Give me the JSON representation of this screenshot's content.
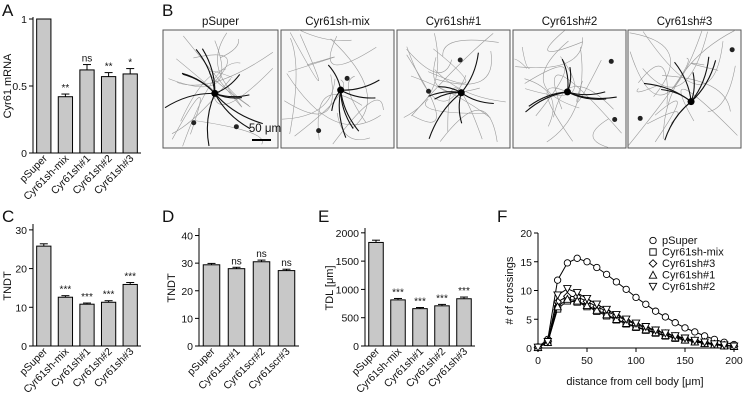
{
  "panels": {
    "A": "A",
    "B": "B",
    "C": "C",
    "D": "D",
    "E": "E",
    "F": "F"
  },
  "colors": {
    "bar": "#c8c8c8",
    "axis": "#000000"
  },
  "micrographs": {
    "labels": [
      "pSuper",
      "Cyr61sh-mix",
      "Cyr61sh#1",
      "Cyr61sh#2",
      "Cyr61sh#3"
    ],
    "scale_bar": "50 μm"
  },
  "chart_data": [
    {
      "panel": "A",
      "type": "bar",
      "ylabel": "Cyr61 mRNA",
      "xlabel": "",
      "categories": [
        "pSuper",
        "Cyr61sh-mix",
        "Cyr61sh#1",
        "Cyr61sh#2",
        "Cyr61sh#3"
      ],
      "values": [
        1.0,
        0.42,
        0.62,
        0.57,
        0.59
      ],
      "errors": [
        0,
        0.02,
        0.04,
        0.03,
        0.04
      ],
      "significance": [
        "",
        "**",
        "ns",
        "**",
        "*"
      ],
      "ylim": [
        0,
        1.0
      ],
      "yticks": [
        0,
        0.5,
        1
      ],
      "ytick_labels": [
        "0",
        "0.5",
        "1"
      ]
    },
    {
      "panel": "C",
      "type": "bar",
      "ylabel": "TNDT",
      "xlabel": "",
      "categories": [
        "pSuper",
        "Cyr61sh-mix",
        "Cyr61sh#1",
        "Cyr61sh#2",
        "Cyr61sh#3"
      ],
      "values": [
        25.8,
        12.6,
        10.8,
        11.3,
        15.9
      ],
      "errors": [
        0.6,
        0.4,
        0.3,
        0.4,
        0.5
      ],
      "significance": [
        "",
        "***",
        "***",
        "***",
        "***"
      ],
      "ylim": [
        0,
        31
      ],
      "yticks": [
        0,
        10,
        20,
        30
      ],
      "ytick_labels": [
        "0",
        "10",
        "20",
        "30"
      ]
    },
    {
      "panel": "D",
      "type": "bar",
      "ylabel": "TNDT",
      "xlabel": "",
      "categories": [
        "pSuper",
        "Cyr61scr#1",
        "Cyr61scr#2",
        "Cyr61scr#3"
      ],
      "values": [
        29.4,
        28.0,
        30.5,
        27.3
      ],
      "errors": [
        0.5,
        0.5,
        0.6,
        0.5
      ],
      "significance": [
        "",
        "ns",
        "ns",
        "ns"
      ],
      "ylim": [
        0,
        42
      ],
      "yticks": [
        0,
        10,
        20,
        30,
        40
      ],
      "ytick_labels": [
        "0",
        "10",
        "20",
        "30",
        "40"
      ]
    },
    {
      "panel": "E",
      "type": "bar",
      "ylabel": "TDL [μm]",
      "xlabel": "",
      "categories": [
        "pSuper",
        "Cyr61sh-mix",
        "Cyr61sh#1",
        "Cyr61sh#2",
        "Cyr61sh#3"
      ],
      "values": [
        1830,
        815,
        660,
        710,
        835
      ],
      "errors": [
        40,
        25,
        20,
        25,
        30
      ],
      "significance": [
        "",
        "***",
        "***",
        "***",
        "***"
      ],
      "ylim": [
        0,
        2050
      ],
      "yticks": [
        0,
        500,
        1000,
        1500,
        2000
      ],
      "ytick_labels": [
        "0",
        "500",
        "1000",
        "1500",
        "2000"
      ]
    },
    {
      "panel": "F",
      "type": "line",
      "ylabel": "# of crossings",
      "xlabel": "distance from cell body [μm]",
      "xlim": [
        0,
        200
      ],
      "ylim": [
        0,
        20
      ],
      "xticks": [
        0,
        50,
        100,
        150,
        200
      ],
      "yticks": [
        0,
        5,
        10,
        15,
        20
      ],
      "x": [
        0,
        10,
        20,
        30,
        40,
        50,
        60,
        70,
        80,
        90,
        100,
        110,
        120,
        130,
        140,
        150,
        160,
        170,
        180,
        190,
        200
      ],
      "series": [
        {
          "name": "pSuper",
          "marker": "circle",
          "values": [
            0.2,
            1.5,
            11.8,
            14.8,
            15.6,
            15.0,
            14.0,
            12.8,
            11.5,
            10.2,
            8.8,
            7.6,
            6.4,
            5.4,
            4.4,
            3.5,
            2.8,
            2.1,
            1.5,
            1.0,
            0.6
          ]
        },
        {
          "name": "Cyr61sh-mix",
          "marker": "square",
          "values": [
            0.1,
            1.0,
            6.8,
            8.2,
            8.0,
            7.2,
            6.4,
            5.6,
            4.9,
            4.2,
            3.6,
            3.1,
            2.6,
            2.1,
            1.7,
            1.4,
            1.1,
            0.8,
            0.6,
            0.4,
            0.3
          ]
        },
        {
          "name": "Cyr61sh#3",
          "marker": "diamond",
          "values": [
            0.1,
            1.2,
            8.0,
            9.0,
            8.9,
            8.1,
            7.2,
            6.4,
            5.6,
            4.8,
            4.1,
            3.5,
            3.0,
            2.5,
            2.0,
            1.6,
            1.3,
            1.0,
            0.7,
            0.5,
            0.3
          ]
        },
        {
          "name": "Cyr61sh#1",
          "marker": "triangle-up",
          "values": [
            0.1,
            1.0,
            7.2,
            8.5,
            8.2,
            7.4,
            6.6,
            5.8,
            5.0,
            4.3,
            3.7,
            3.2,
            2.7,
            2.2,
            1.8,
            1.4,
            1.1,
            0.8,
            0.6,
            0.4,
            0.3
          ]
        },
        {
          "name": "Cyr61sh#2",
          "marker": "triangle-down",
          "values": [
            0.1,
            1.1,
            9.2,
            10.3,
            9.6,
            8.6,
            7.6,
            6.7,
            5.8,
            5.0,
            4.3,
            3.7,
            3.1,
            2.6,
            2.1,
            1.7,
            1.3,
            1.0,
            0.7,
            0.5,
            0.3
          ]
        }
      ]
    }
  ]
}
